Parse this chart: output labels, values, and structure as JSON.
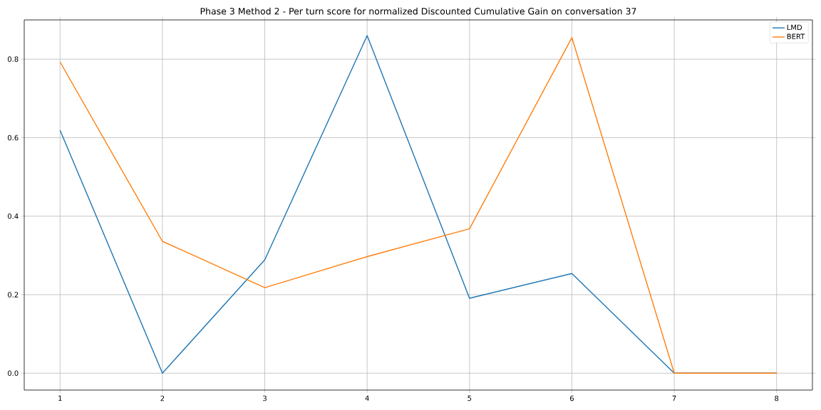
{
  "chart_data": {
    "type": "line",
    "title": "Phase 3 Method 2 - Per turn score for normalized Discounted Cumulative Gain on conversation 37",
    "x": [
      1,
      2,
      3,
      4,
      5,
      6,
      7,
      8
    ],
    "series": [
      {
        "name": "LMD",
        "color": "#1f77b4",
        "values": [
          0.619,
          0.0,
          0.289,
          0.86,
          0.191,
          0.254,
          0.0,
          0.0
        ]
      },
      {
        "name": "BERT",
        "color": "#ff7f0e",
        "values": [
          0.793,
          0.336,
          0.218,
          0.297,
          0.368,
          0.855,
          0.0,
          0.0
        ]
      }
    ],
    "xlim": [
      0.65,
      8.35
    ],
    "ylim": [
      -0.043,
      0.9
    ],
    "xticks": [
      1,
      2,
      3,
      4,
      5,
      6,
      7,
      8
    ],
    "yticks": [
      {
        "value": 0,
        "label": "0.0"
      },
      {
        "value": 0.2,
        "label": "0.2"
      },
      {
        "value": 0.4,
        "label": "0.4"
      },
      {
        "value": 0.6,
        "label": "0.6"
      },
      {
        "value": 0.8,
        "label": "0.8"
      }
    ],
    "grid": true,
    "legend": "top right",
    "marker": "none",
    "line_style": "solid"
  }
}
